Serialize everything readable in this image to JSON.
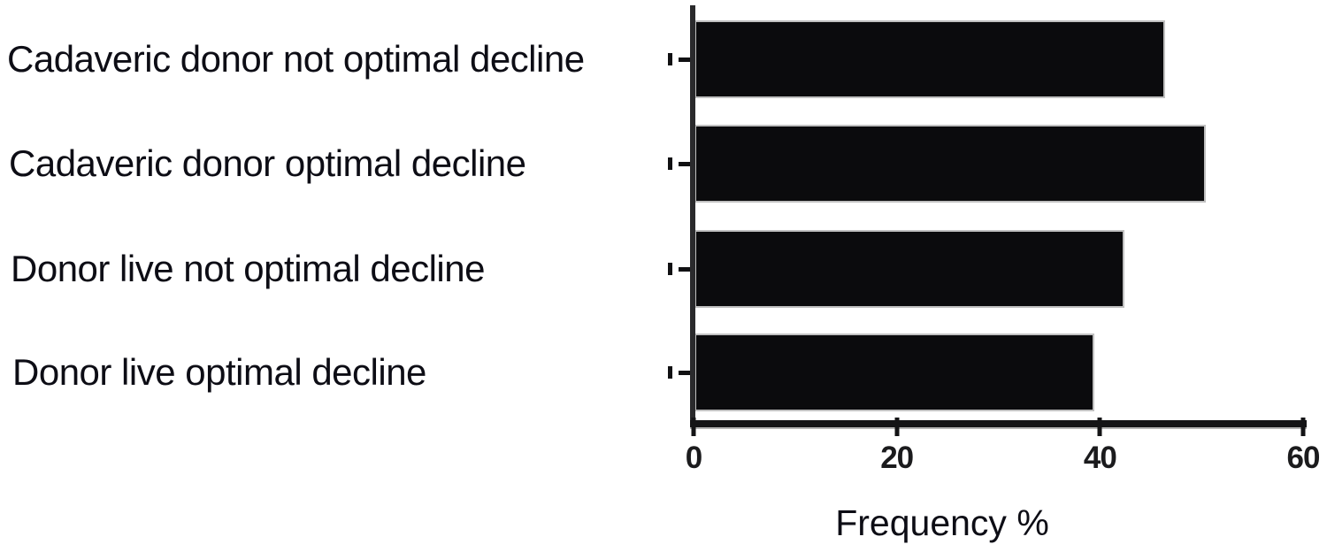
{
  "chart_data": {
    "type": "bar",
    "orientation": "horizontal",
    "title": "",
    "categories": [
      "Cadaveric donor not optimal decline",
      "Cadaveric donor optimal decline",
      "Donor live not optimal decline",
      "Donor live optimal decline"
    ],
    "values": [
      46,
      50,
      42,
      39
    ],
    "xlabel": "Frequency %",
    "ylabel": "",
    "xlim": [
      0,
      60
    ],
    "xticks": [
      0,
      20,
      40,
      60
    ],
    "grid": false,
    "legend": false,
    "bar_color": "#0b0b0d",
    "axis_color": "#141416",
    "text_color": "#0d0d15",
    "background": "#ffffff"
  }
}
